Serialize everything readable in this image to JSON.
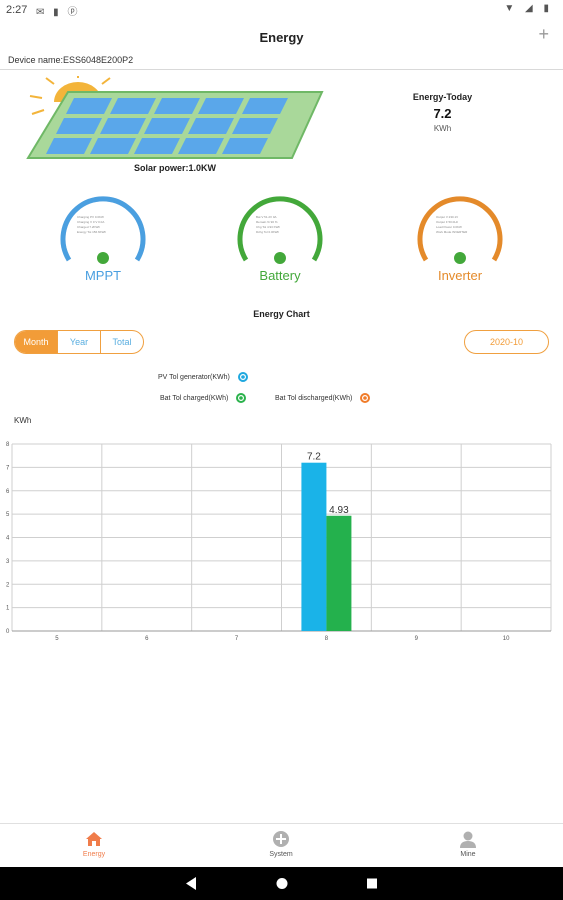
{
  "status_bar": {
    "time": "2:27"
  },
  "app_bar": {
    "title": "Energy",
    "plus": "+"
  },
  "device": {
    "label": "Device name:ESS6048E200P2"
  },
  "solar": {
    "label": "Solar power:1.0KW"
  },
  "energy_today": {
    "label": "Energy-Today",
    "value": "7.2",
    "unit": "KWh"
  },
  "gauges": [
    {
      "name": "MPPT",
      "color": "#4a9fe0",
      "lines": [
        "Charging PV 0.0KW",
        "Charging V 0 V 0.0A",
        "Charged 7.2KWh",
        "Energy Tot 156.6KWh"
      ]
    },
    {
      "name": "Battery",
      "color": "#43a83a",
      "lines": [
        "Bat V 51.2V 0A",
        "Remain % 90 %",
        "Chg Tol 4.93 KWh",
        "Dchg Tol 0.0KWh"
      ]
    },
    {
      "name": "Inverter",
      "color": "#e48a2a",
      "lines": [
        "Output V 230.1V",
        "Output F 50.0Hz",
        "Load Power 0.0KW",
        "Work Mode INVERTER"
      ]
    }
  ],
  "chart_section": {
    "title": "Energy Chart"
  },
  "tabs": {
    "month": "Month",
    "year": "Year",
    "total": "Total",
    "active": "month"
  },
  "date_picker": {
    "value": "2020-10"
  },
  "legend": [
    {
      "label": "PV Tol generator(KWh)",
      "color": "#1fa8df"
    },
    {
      "label": "Bat Tol charged(KWh)",
      "color": "#2bb24c"
    },
    {
      "label": "Bat Tol discharged(KWh)",
      "color": "#f07c2a"
    }
  ],
  "chart_data": {
    "type": "bar",
    "ylabel": "KWh",
    "ylim": [
      0,
      8
    ],
    "yticks": [
      "0",
      "1",
      "2",
      "3",
      "4",
      "5",
      "6",
      "7",
      "8"
    ],
    "categories": [
      "5",
      "6",
      "7",
      "8",
      "9",
      "10"
    ],
    "series": [
      {
        "name": "PV Tol generator(KWh)",
        "color": "#1ab3e8",
        "values": [
          null,
          null,
          null,
          7.2,
          null,
          null
        ]
      },
      {
        "name": "Bat Tol charged(KWh)",
        "color": "#24b14d",
        "values": [
          null,
          null,
          null,
          4.93,
          null,
          null
        ]
      }
    ],
    "data_labels": [
      "7.2",
      "4.93"
    ],
    "grid": true
  },
  "bottom_nav": [
    {
      "label": "Energy",
      "icon": "home-icon",
      "active": true
    },
    {
      "label": "System",
      "icon": "plus-circle-icon",
      "active": false
    },
    {
      "label": "Mine",
      "icon": "person-icon",
      "active": false
    }
  ],
  "colors": {
    "accent": "#f29c38",
    "nav_active": "#f07c4a",
    "nav_inactive": "#888888"
  }
}
